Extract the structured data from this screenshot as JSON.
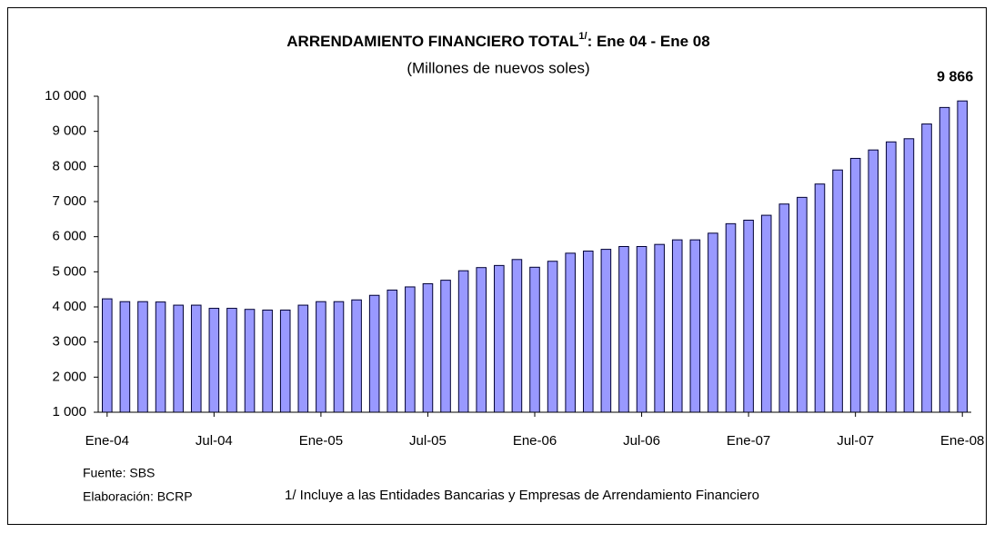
{
  "chart_data": {
    "type": "bar",
    "title": "ARRENDAMIENTO FINANCIERO TOTAL",
    "title_superscript": "1/",
    "title_suffix": ":  Ene 04 - Ene 08",
    "subtitle": "(Millones de nuevos soles)",
    "categories": [
      "Ene-04",
      null,
      null,
      null,
      null,
      null,
      "Jul-04",
      null,
      null,
      null,
      null,
      null,
      "Ene-05",
      null,
      null,
      null,
      null,
      null,
      "Jul-05",
      null,
      null,
      null,
      null,
      null,
      "Ene-06",
      null,
      null,
      null,
      null,
      null,
      "Jul-06",
      null,
      null,
      null,
      null,
      null,
      "Ene-07",
      null,
      null,
      null,
      null,
      null,
      "Jul-07",
      null,
      null,
      null,
      null,
      null,
      "Ene-08"
    ],
    "values": [
      4230,
      4150,
      4150,
      4140,
      4050,
      4050,
      3960,
      3960,
      3930,
      3910,
      3910,
      4050,
      4150,
      4150,
      4200,
      4330,
      4480,
      4570,
      4660,
      4760,
      5030,
      5120,
      5180,
      5350,
      5130,
      5300,
      5530,
      5590,
      5640,
      5720,
      5720,
      5780,
      5910,
      5910,
      6100,
      6370,
      6470,
      6610,
      6930,
      7120,
      7500,
      7900,
      8230,
      8470,
      8700,
      8790,
      9210,
      9680,
      9866
    ],
    "value_labels": [
      null,
      null,
      null,
      null,
      null,
      null,
      null,
      null,
      null,
      null,
      null,
      null,
      null,
      null,
      null,
      null,
      null,
      null,
      null,
      null,
      null,
      null,
      null,
      null,
      null,
      null,
      null,
      null,
      null,
      null,
      null,
      null,
      null,
      null,
      null,
      null,
      null,
      null,
      null,
      null,
      null,
      null,
      null,
      null,
      null,
      null,
      null,
      null,
      "9 866"
    ],
    "color": "#9999ff",
    "ylim": [
      1000,
      10000
    ],
    "yticks": [
      {
        "value": 1000,
        "label": "1 000"
      },
      {
        "value": 2000,
        "label": "2 000"
      },
      {
        "value": 3000,
        "label": "3 000"
      },
      {
        "value": 4000,
        "label": "4 000"
      },
      {
        "value": 5000,
        "label": "5 000"
      },
      {
        "value": 6000,
        "label": "6 000"
      },
      {
        "value": 7000,
        "label": "7 000"
      },
      {
        "value": 8000,
        "label": "8 000"
      },
      {
        "value": 9000,
        "label": "9 000"
      },
      {
        "value": 10000,
        "label": "10 000"
      }
    ],
    "grid": false,
    "source": "Fuente: SBS",
    "prepared_by": "Elaboración: BCRP",
    "footnote": "1/ Incluye a  las Entidades Bancarias y Empresas de Arrendamiento Financiero"
  }
}
